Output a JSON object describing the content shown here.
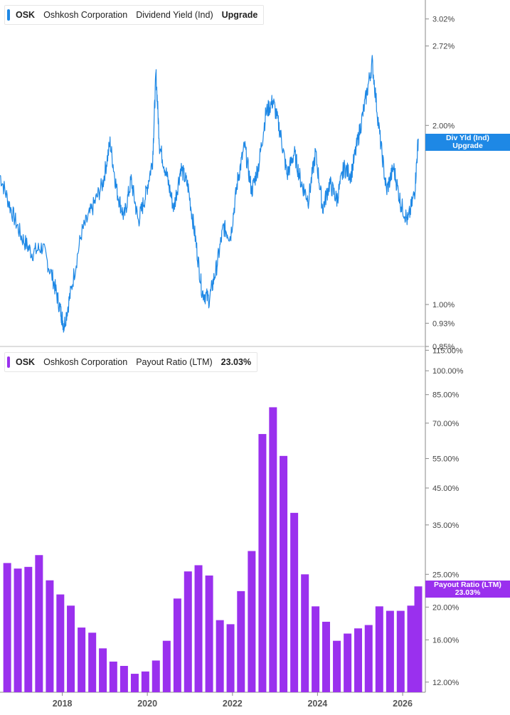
{
  "colors": {
    "dividend": "#1e88e5",
    "payout": "#9a30ee",
    "axis": "#9a9a9a",
    "text": "#444444"
  },
  "top_panel": {
    "ticker": "OSK",
    "company": "Oshkosh Corporation",
    "metric": "Dividend Yield (Ind)",
    "value": "Upgrade",
    "flag_line1": "Div Yld (Ind)",
    "flag_line2": "Upgrade"
  },
  "bottom_panel": {
    "ticker": "OSK",
    "company": "Oshkosh Corporation",
    "metric": "Payout Ratio (LTM)",
    "value": "23.03%",
    "flag_line1": "Payout Ratio (LTM)",
    "flag_line2": "23.03%"
  },
  "chart_data": [
    {
      "type": "line",
      "title": "OSK Oshkosh Corporation Dividend Yield (Ind)",
      "y_scale": "log",
      "ylim": [
        0.85,
        3.25
      ],
      "y_ticks": [
        "3.02%",
        "2.72%",
        "2.00%",
        "1.00%",
        "0.93%",
        "0.85%"
      ],
      "y_tick_values": [
        3.02,
        2.72,
        2.0,
        1.0,
        0.93,
        0.85
      ],
      "xlim": [
        "2016-07-15",
        "2026-07-15"
      ],
      "x_ticks": [
        "2018",
        "2020",
        "2022",
        "2024",
        "2026"
      ],
      "series": [
        {
          "x": [
            "2016-07",
            "2016-10",
            "2017-01",
            "2017-04",
            "2017-07",
            "2017-10",
            "2017-12",
            "2018-01",
            "2018-03",
            "2018-06",
            "2018-09",
            "2018-12",
            "2019-02",
            "2019-04",
            "2019-06",
            "2019-08",
            "2019-10",
            "2019-12",
            "2020-02",
            "2020-03",
            "2020-04",
            "2020-06",
            "2020-08",
            "2020-10",
            "2020-12",
            "2021-02",
            "2021-04",
            "2021-06",
            "2021-08",
            "2021-10",
            "2021-12",
            "2022-02",
            "2022-04",
            "2022-06",
            "2022-08",
            "2022-10",
            "2022-12",
            "2023-02",
            "2023-04",
            "2023-06",
            "2023-08",
            "2023-10",
            "2023-12",
            "2024-02",
            "2024-04",
            "2024-06",
            "2024-08",
            "2024-10",
            "2024-12",
            "2025-02",
            "2025-04",
            "2025-06",
            "2025-08",
            "2025-10",
            "2025-12",
            "2026-02",
            "2026-04",
            "2026-05"
          ],
          "values": [
            1.65,
            1.45,
            1.3,
            1.22,
            1.25,
            1.1,
            0.98,
            0.92,
            1.05,
            1.32,
            1.45,
            1.6,
            1.87,
            1.55,
            1.4,
            1.62,
            1.38,
            1.52,
            1.75,
            2.45,
            1.85,
            1.65,
            1.45,
            1.7,
            1.58,
            1.3,
            1.05,
            1.02,
            1.15,
            1.35,
            1.3,
            1.62,
            1.85,
            1.55,
            1.72,
            2.1,
            2.2,
            1.95,
            1.65,
            1.8,
            1.6,
            1.5,
            1.8,
            1.45,
            1.6,
            1.5,
            1.7,
            1.65,
            1.9,
            2.2,
            2.55,
            1.95,
            1.55,
            1.7,
            1.48,
            1.38,
            1.55,
            1.9
          ]
        }
      ]
    },
    {
      "type": "bar",
      "title": "OSK Oshkosh Corporation Payout Ratio (LTM)",
      "y_scale": "log",
      "ylim": [
        11.2,
        118
      ],
      "y_ticks": [
        "115.00%",
        "100.00%",
        "85.00%",
        "70.00%",
        "55.00%",
        "45.00%",
        "35.00%",
        "25.00%",
        "20.00%",
        "16.00%",
        "12.00%"
      ],
      "y_tick_values": [
        115,
        100,
        85,
        70,
        55,
        45,
        35,
        25,
        20,
        16,
        12
      ],
      "xlim": [
        "2016-07-15",
        "2026-07-15"
      ],
      "x_ticks": [
        "2018",
        "2020",
        "2022",
        "2024",
        "2026"
      ],
      "categories": [
        "2016-09",
        "2016-12",
        "2017-03",
        "2017-06",
        "2017-09",
        "2017-12",
        "2018-03",
        "2018-06",
        "2018-09",
        "2018-12",
        "2019-03",
        "2019-06",
        "2019-09",
        "2019-12",
        "2020-03",
        "2020-06",
        "2020-09",
        "2020-12",
        "2021-03",
        "2021-06",
        "2021-09",
        "2021-12",
        "2022-03",
        "2022-06",
        "2022-09",
        "2022-12",
        "2023-03",
        "2023-06",
        "2023-09",
        "2023-12",
        "2024-03",
        "2024-06",
        "2024-09",
        "2024-12",
        "2025-03",
        "2025-06",
        "2025-09",
        "2025-12",
        "2026-03",
        "2026-05"
      ],
      "series": [
        {
          "name": "Payout Ratio (LTM)",
          "values": [
            27.0,
            26.0,
            26.3,
            28.5,
            24.0,
            21.8,
            20.2,
            17.4,
            16.8,
            15.1,
            13.8,
            13.4,
            12.7,
            12.9,
            13.9,
            15.9,
            21.2,
            25.5,
            26.6,
            24.8,
            18.3,
            17.8,
            22.3,
            29.3,
            65.0,
            78.0,
            56.0,
            38.0,
            25.0,
            20.1,
            18.1,
            15.9,
            16.7,
            17.3,
            17.7,
            20.1,
            19.5,
            19.5,
            20.2,
            23.03
          ]
        }
      ]
    }
  ]
}
